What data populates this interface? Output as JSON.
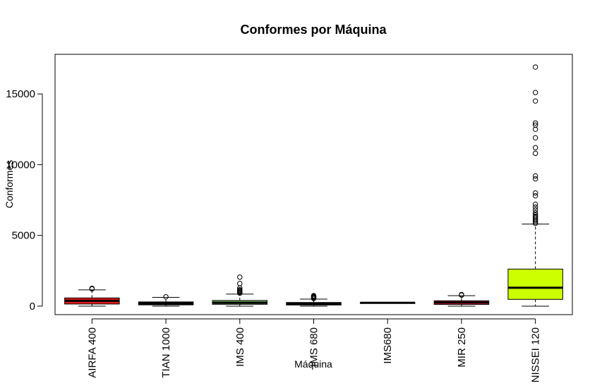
{
  "chart_data": {
    "type": "box",
    "title": "Conformes por Máquina",
    "xlabel": "Máquina",
    "ylabel": "Conformes",
    "ylim": [
      -600,
      17800
    ],
    "yticks": [
      0,
      5000,
      10000,
      15000
    ],
    "categories": [
      "AIRFA 400",
      "TIAN 1000",
      "IMS 400",
      "IMS 680",
      "IMS680",
      "MIR 250",
      "NISSEI 120"
    ],
    "series": [
      {
        "category": "AIRFA 400",
        "fill": "#e41a1c",
        "whisker_low": 0,
        "q1": 150,
        "median": 380,
        "q3": 580,
        "whisker_high": 1150,
        "outliers": [
          1220,
          1260
        ]
      },
      {
        "category": "TIAN 1000",
        "fill": "#111111",
        "whisker_low": 0,
        "q1": 90,
        "median": 180,
        "q3": 300,
        "whisker_high": 620,
        "outliers": [
          660
        ]
      },
      {
        "category": "IMS 400",
        "fill": "#6fbf5e",
        "whisker_low": 0,
        "q1": 130,
        "median": 240,
        "q3": 400,
        "whisker_high": 850,
        "outliers": [
          920,
          980,
          1050,
          1100,
          1160,
          1280,
          1600,
          2050
        ]
      },
      {
        "category": "IMS 680",
        "fill": "#111111",
        "whisker_low": 0,
        "q1": 80,
        "median": 150,
        "q3": 260,
        "whisker_high": 500,
        "outliers": [
          540,
          580,
          620,
          660,
          700,
          740
        ]
      },
      {
        "category": "IMS680",
        "fill": "#111111",
        "whisker_low": 220,
        "q1": 225,
        "median": 235,
        "q3": 245,
        "whisker_high": 250,
        "outliers": []
      },
      {
        "category": "MIR 250",
        "fill": "#e41a1c",
        "whisker_low": 0,
        "q1": 120,
        "median": 260,
        "q3": 380,
        "whisker_high": 740,
        "outliers": [
          780,
          820
        ]
      },
      {
        "category": "NISSEI 120",
        "fill": "#ccff00",
        "whisker_low": 0,
        "q1": 480,
        "median": 1300,
        "q3": 2620,
        "whisker_high": 5800,
        "outliers": [
          5850,
          5950,
          6050,
          6150,
          6250,
          6350,
          6450,
          6600,
          6800,
          7000,
          7200,
          7800,
          8000,
          9000,
          9200,
          10800,
          11200,
          11900,
          12500,
          12800,
          12950,
          14500,
          15100,
          16900
        ]
      }
    ]
  }
}
